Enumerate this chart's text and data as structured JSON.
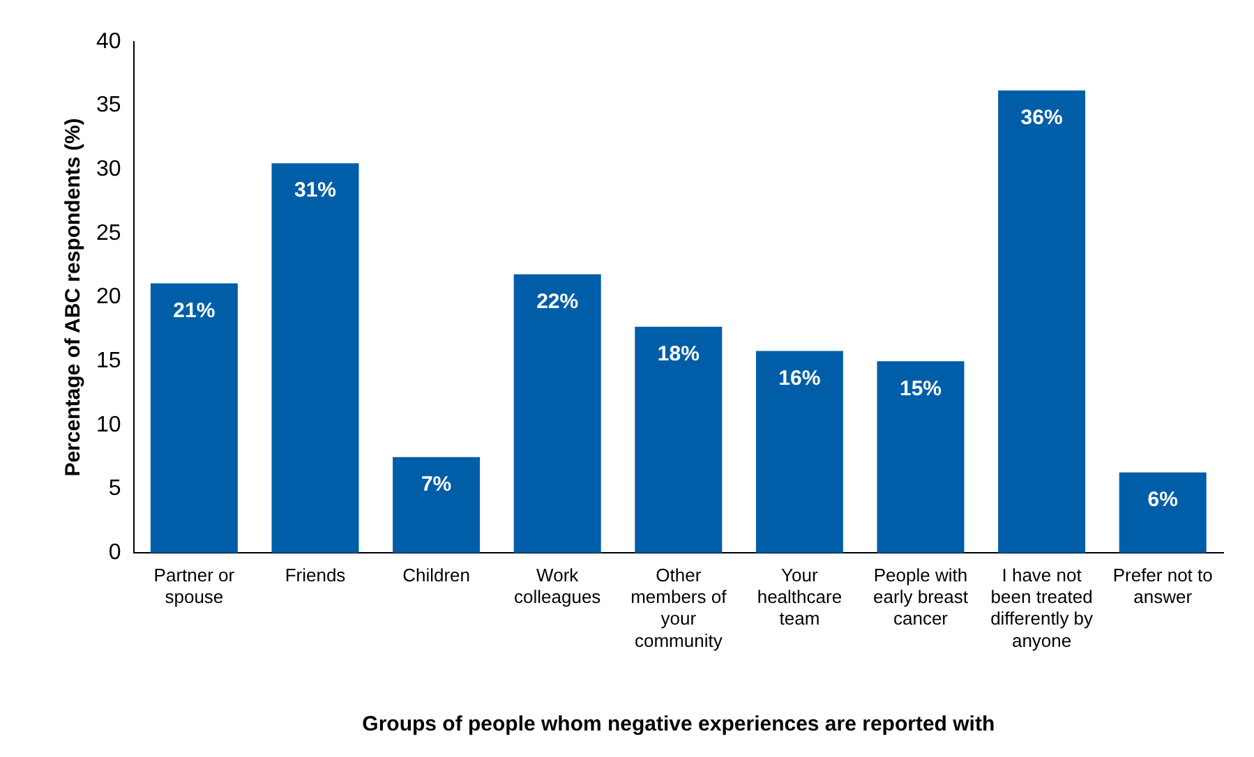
{
  "chart_data": {
    "type": "bar",
    "xlabel": "Groups of people whom negative experiences are reported with",
    "ylabel": "Percentage of ABC respondents (%)",
    "categories": [
      "Partner or spouse",
      "Friends",
      "Children",
      "Work colleagues",
      "Other members of your community",
      "Your healthcare team",
      "People with early breast cancer",
      "I have not been treated differently by anyone",
      "Prefer not to answer"
    ],
    "values": [
      21.1,
      30.5,
      7.5,
      21.8,
      17.7,
      15.8,
      15.0,
      36.2,
      6.3
    ],
    "value_labels": [
      "21%",
      "31%",
      "7%",
      "22%",
      "18%",
      "16%",
      "15%",
      "36%",
      "6%"
    ],
    "color": "#005ea8",
    "ylim": [
      0,
      40
    ],
    "yticks": [
      0,
      5,
      10,
      15,
      20,
      25,
      30,
      35,
      40
    ],
    "grid": false,
    "legend": false
  }
}
